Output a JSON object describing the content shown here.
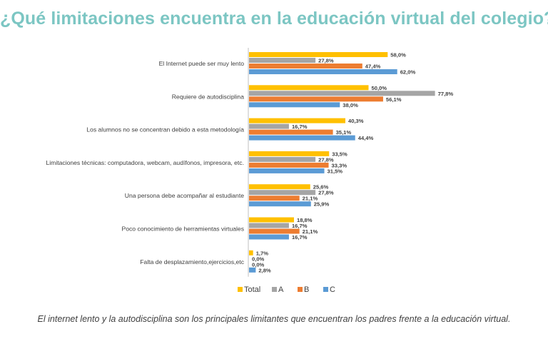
{
  "title": "¿Qué limitaciones encuentra en la educación virtual del colegio?",
  "caption": "El internet lento y la autodisciplina son los principales limitantes que encuentran los padres frente a la educación virtual.",
  "colors": {
    "title": "#7cc6c3",
    "Total": "#ffc000",
    "A": "#a5a5a5",
    "B": "#ed7d31",
    "C": "#5b9bd5"
  },
  "chart_data": {
    "type": "bar",
    "orientation": "horizontal",
    "categories": [
      "El Internet puede ser muy lento",
      "Requiere de autodisciplina",
      "Los alumnos no se concentran debido a esta metodología",
      "Limitaciones técnicas: computadora, webcam, audífonos, impresora, etc.",
      "Una persona debe acompañar al estudiante",
      "Poco conocimiento de herramientas virtuales",
      "Falta de desplazamiento,ejercicios,etc"
    ],
    "series": [
      {
        "name": "Total",
        "values": [
          58.0,
          50.0,
          40.3,
          33.5,
          25.6,
          18.8,
          1.7
        ],
        "labels": [
          "58,0%",
          "50,0%",
          "40,3%",
          "33,5%",
          "25,6%",
          "18,8%",
          "1,7%"
        ]
      },
      {
        "name": "A",
        "values": [
          27.8,
          77.8,
          16.7,
          27.8,
          27.8,
          16.7,
          0.0
        ],
        "labels": [
          "27,8%",
          "77,8%",
          "16,7%",
          "27,8%",
          "27,8%",
          "16,7%",
          "0,0%"
        ]
      },
      {
        "name": "B",
        "values": [
          47.4,
          56.1,
          35.1,
          33.3,
          21.1,
          21.1,
          0.0
        ],
        "labels": [
          "47,4%",
          "56,1%",
          "35,1%",
          "33,3%",
          "21,1%",
          "21,1%",
          "0,0%"
        ]
      },
      {
        "name": "C",
        "values": [
          62.0,
          38.0,
          44.4,
          31.5,
          25.9,
          16.7,
          2.8
        ],
        "labels": [
          "62,0%",
          "38,0%",
          "44,4%",
          "31,5%",
          "25,9%",
          "16,7%",
          "2,8%"
        ]
      }
    ],
    "xlim": [
      0,
      100
    ],
    "grid": false,
    "legend_position": "bottom"
  }
}
